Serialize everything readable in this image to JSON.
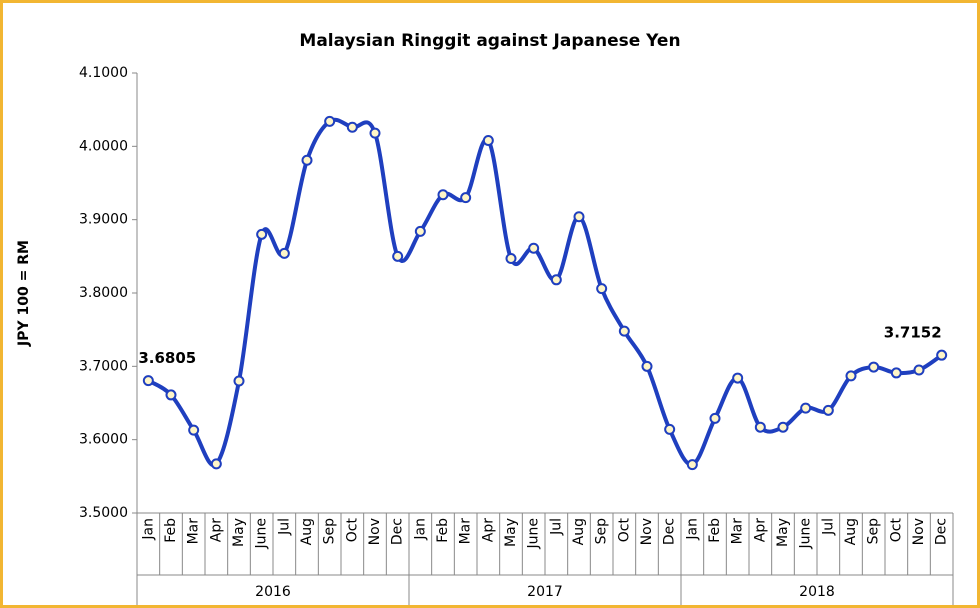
{
  "chart_data": {
    "type": "line",
    "title": "Malaysian Ringgit against Japanese Yen",
    "y_label": "JPY 100 = RM",
    "categories": [
      "Jan",
      "Feb",
      "Mar",
      "Apr",
      "May",
      "June",
      "Jul",
      "Aug",
      "Sep",
      "Oct",
      "Nov",
      "Dec",
      "Jan",
      "Feb",
      "Mar",
      "Apr",
      "May",
      "June",
      "Jul",
      "Aug",
      "Sep",
      "Oct",
      "Nov",
      "Dec",
      "Jan",
      "Feb",
      "Mar",
      "Apr",
      "May",
      "June",
      "Jul",
      "Aug",
      "Sep",
      "Oct",
      "Nov",
      "Dec"
    ],
    "years": [
      "2016",
      "2017",
      "2018"
    ],
    "values": [
      3.6805,
      3.661,
      3.613,
      3.567,
      3.68,
      3.88,
      3.854,
      3.981,
      4.034,
      4.026,
      4.018,
      3.85,
      3.884,
      3.934,
      3.93,
      4.008,
      3.847,
      3.861,
      3.818,
      3.904,
      3.806,
      3.748,
      3.7,
      3.614,
      3.566,
      3.629,
      3.684,
      3.617,
      3.617,
      3.643,
      3.64,
      3.687,
      3.699,
      3.691,
      3.695,
      3.7152
    ],
    "color": "#1f3fbf",
    "end_labels": true,
    "smooth": true,
    "grid": false,
    "ylim": [
      3.5,
      4.1
    ],
    "yticks": [
      {
        "value": 3.5,
        "label": "3.5000"
      },
      {
        "value": 3.6,
        "label": "3.6000"
      },
      {
        "value": 3.7,
        "label": "3.7000"
      },
      {
        "value": 3.8,
        "label": "3.8000"
      },
      {
        "value": 3.9,
        "label": "3.9000"
      },
      {
        "value": 4.0,
        "label": "4.0000"
      },
      {
        "value": 4.1,
        "label": "4.1000"
      }
    ]
  }
}
